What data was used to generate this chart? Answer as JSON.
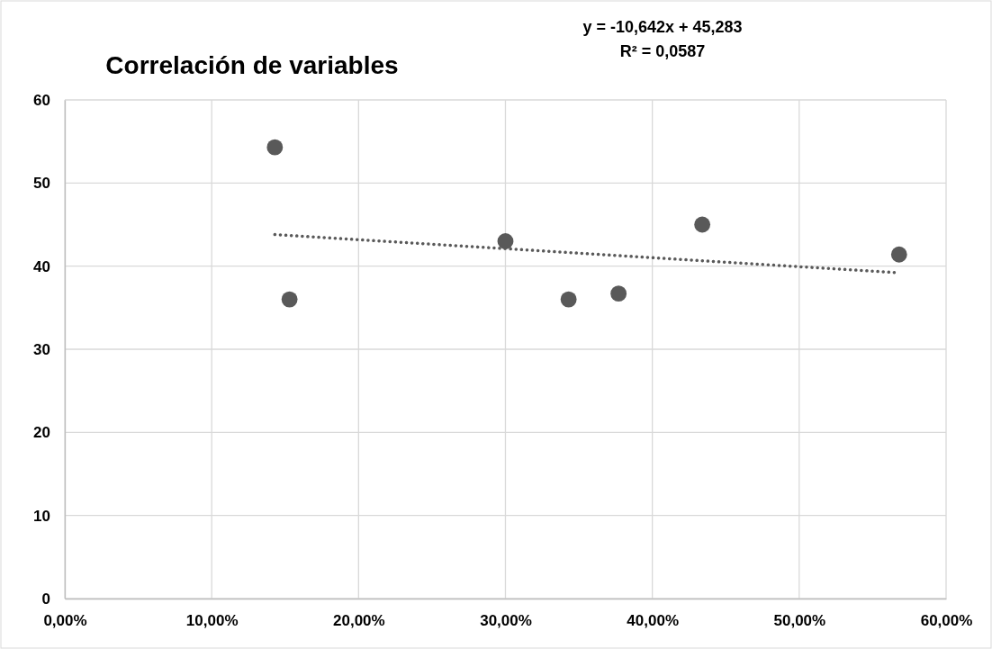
{
  "chart_data": {
    "type": "scatter",
    "title": "Correlación de variables",
    "annotations": [
      "y = -10,642x + 45,283",
      "R² = 0,0587"
    ],
    "xlim": [
      0,
      60
    ],
    "ylim": [
      0,
      60
    ],
    "xticks": [
      {
        "value": 0,
        "label": "0,00%"
      },
      {
        "value": 10,
        "label": "10,00%"
      },
      {
        "value": 20,
        "label": "20,00%"
      },
      {
        "value": 30,
        "label": "30,00%"
      },
      {
        "value": 40,
        "label": "40,00%"
      },
      {
        "value": 50,
        "label": "50,00%"
      },
      {
        "value": 60,
        "label": "60,00%"
      }
    ],
    "yticks": [
      0,
      10,
      20,
      30,
      40,
      50,
      60
    ],
    "grid": true,
    "series": [
      {
        "marker": "circle",
        "color": "#595959",
        "x": [
          14.3,
          15.3,
          30.0,
          34.3,
          37.7,
          43.4,
          56.8
        ],
        "values": [
          54.3,
          36.0,
          43.0,
          36.0,
          36.7,
          45.0,
          41.4
        ]
      },
      {
        "type": "line",
        "marker": "none",
        "color": "#595959",
        "line_style": "dotted",
        "x": [
          14.3,
          56.8
        ],
        "values": [
          43.8,
          39.2
        ]
      }
    ]
  }
}
